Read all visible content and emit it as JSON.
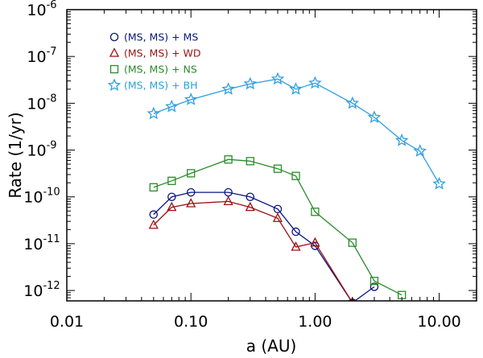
{
  "chart_data": {
    "type": "line",
    "xlabel": "a (AU)",
    "ylabel": "Rate (1/yr)",
    "xscale": "log",
    "yscale": "log",
    "xlim": [
      0.01,
      20
    ],
    "ylim": [
      6e-13,
      1e-06
    ],
    "x_tick_labels": [
      "0.01",
      "0.10",
      "1.00",
      "10.00"
    ],
    "x_tick_values": [
      0.01,
      0.1,
      1,
      10
    ],
    "y_tick_exponents": [
      "-12",
      "-11",
      "-10",
      "-9",
      "-8",
      "-7",
      "-6"
    ],
    "y_tick_base": "10",
    "legend_position": "top-left",
    "series": [
      {
        "name": "(MS, MS) + MS",
        "marker": "circle",
        "color": "#0a1580",
        "x": [
          0.05,
          0.07,
          0.1,
          0.2,
          0.3,
          0.5,
          0.7,
          1.0,
          2.0,
          3.0
        ],
        "y": [
          4.2e-11,
          1e-10,
          1.25e-10,
          1.25e-10,
          1e-10,
          5.5e-11,
          1.8e-11,
          9e-12,
          5.5e-13,
          1.2e-12
        ]
      },
      {
        "name": "(MS, MS) + WD",
        "marker": "triangle",
        "color": "#9a1010",
        "x": [
          0.05,
          0.07,
          0.1,
          0.2,
          0.3,
          0.5,
          0.7,
          1.0,
          2.0
        ],
        "y": [
          2.5e-11,
          6e-11,
          7.2e-11,
          8e-11,
          6e-11,
          3.5e-11,
          8.5e-12,
          1.05e-11,
          5.5e-13
        ]
      },
      {
        "name": "(MS, MS) + NS",
        "marker": "square",
        "color": "#2a8c2a",
        "x": [
          0.05,
          0.07,
          0.1,
          0.2,
          0.3,
          0.5,
          0.7,
          1.0,
          2.0,
          3.0,
          5.0
        ],
        "y": [
          1.6e-10,
          2.2e-10,
          3.2e-10,
          6.3e-10,
          5.8e-10,
          4e-10,
          2.8e-10,
          4.8e-11,
          1.05e-11,
          1.6e-12,
          8e-13
        ]
      },
      {
        "name": "(MS, MS) + BH",
        "marker": "star",
        "color": "#2f9fe0",
        "x": [
          0.05,
          0.07,
          0.1,
          0.2,
          0.3,
          0.5,
          0.7,
          1.0,
          2.0,
          3.0,
          5.0,
          7.0,
          10.0
        ],
        "y": [
          6e-09,
          8.5e-09,
          1.2e-08,
          2e-08,
          2.6e-08,
          3.3e-08,
          2e-08,
          2.7e-08,
          1e-08,
          5e-09,
          1.6e-09,
          9.5e-10,
          1.9e-10
        ]
      }
    ]
  }
}
